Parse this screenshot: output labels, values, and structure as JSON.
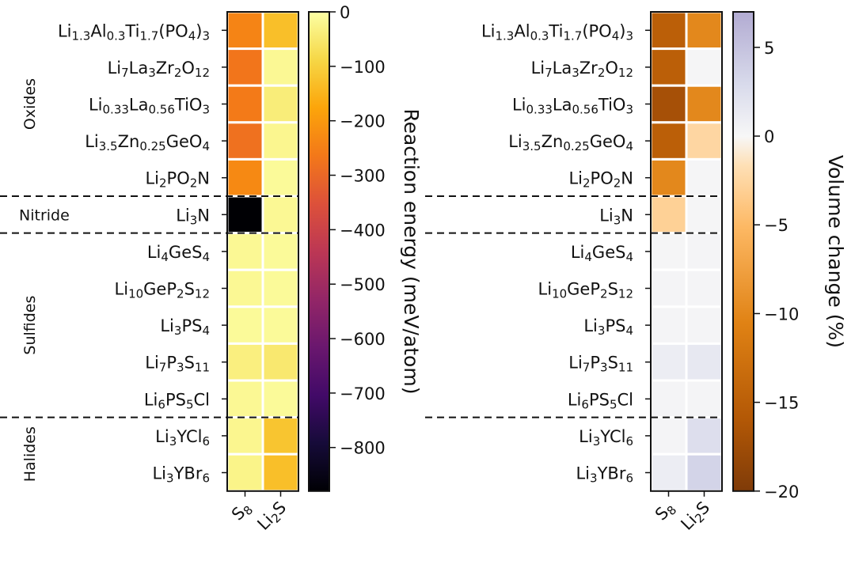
{
  "chart_data": [
    {
      "type": "heatmap",
      "columns": [
        {
          "base": "S",
          "sub": "8"
        },
        {
          "base": "Li",
          "sub": "2",
          "after": "S"
        }
      ],
      "rows": [
        {
          "group": "Oxides",
          "label": [
            [
              "Li",
              ""
            ],
            [
              "1.3",
              "sub"
            ],
            [
              "Al",
              ""
            ],
            [
              "0.3",
              "sub"
            ],
            [
              "Ti",
              ""
            ],
            [
              "1.7",
              "sub"
            ],
            [
              "(PO",
              ""
            ],
            [
              "4",
              "sub"
            ],
            [
              ")",
              ""
            ],
            [
              "3",
              "sub"
            ]
          ]
        },
        {
          "group": "Oxides",
          "label": [
            [
              "Li",
              ""
            ],
            [
              "7",
              "sub"
            ],
            [
              "La",
              ""
            ],
            [
              "3",
              "sub"
            ],
            [
              "Zr",
              ""
            ],
            [
              "2",
              "sub"
            ],
            [
              "O",
              ""
            ],
            [
              "12",
              "sub"
            ]
          ]
        },
        {
          "group": "Oxides",
          "label": [
            [
              "Li",
              ""
            ],
            [
              "0.33",
              "sub"
            ],
            [
              "La",
              ""
            ],
            [
              "0.56",
              "sub"
            ],
            [
              "TiO",
              ""
            ],
            [
              "3",
              "sub"
            ]
          ]
        },
        {
          "group": "Oxides",
          "label": [
            [
              "Li",
              ""
            ],
            [
              "3.5",
              "sub"
            ],
            [
              "Zn",
              ""
            ],
            [
              "0.25",
              "sub"
            ],
            [
              "GeO",
              ""
            ],
            [
              "4",
              "sub"
            ]
          ]
        },
        {
          "group": "Oxides",
          "label": [
            [
              "Li",
              ""
            ],
            [
              "2",
              "sub"
            ],
            [
              "PO",
              ""
            ],
            [
              "2",
              "sub"
            ],
            [
              "N",
              ""
            ]
          ]
        },
        {
          "group": "Nitride",
          "label": [
            [
              "Li",
              ""
            ],
            [
              "3",
              "sub"
            ],
            [
              "N",
              ""
            ]
          ]
        },
        {
          "group": "Sulfides",
          "label": [
            [
              "Li",
              ""
            ],
            [
              "4",
              "sub"
            ],
            [
              "GeS",
              ""
            ],
            [
              "4",
              "sub"
            ]
          ]
        },
        {
          "group": "Sulfides",
          "label": [
            [
              "Li",
              ""
            ],
            [
              "10",
              "sub"
            ],
            [
              "GeP",
              ""
            ],
            [
              "2",
              "sub"
            ],
            [
              "S",
              ""
            ],
            [
              "12",
              "sub"
            ]
          ]
        },
        {
          "group": "Sulfides",
          "label": [
            [
              "Li",
              ""
            ],
            [
              "3",
              "sub"
            ],
            [
              "PS",
              ""
            ],
            [
              "4",
              "sub"
            ]
          ]
        },
        {
          "group": "Sulfides",
          "label": [
            [
              "Li",
              ""
            ],
            [
              "7",
              "sub"
            ],
            [
              "P",
              ""
            ],
            [
              "3",
              "sub"
            ],
            [
              "S",
              ""
            ],
            [
              "11",
              "sub"
            ]
          ]
        },
        {
          "group": "Sulfides",
          "label": [
            [
              "Li",
              ""
            ],
            [
              "6",
              "sub"
            ],
            [
              "PS",
              ""
            ],
            [
              "5",
              "sub"
            ],
            [
              "Cl",
              ""
            ]
          ]
        },
        {
          "group": "Halides",
          "label": [
            [
              "Li",
              ""
            ],
            [
              "3",
              "sub"
            ],
            [
              "YCl",
              ""
            ],
            [
              "6",
              "sub"
            ]
          ]
        },
        {
          "group": "Halides",
          "label": [
            [
              "Li",
              ""
            ],
            [
              "3",
              "sub"
            ],
            [
              "YBr",
              ""
            ],
            [
              "6",
              "sub"
            ]
          ]
        }
      ],
      "groups": [
        "Oxides",
        "Nitride",
        "Sulfides",
        "Halides"
      ],
      "values": [
        [
          -240,
          -130
        ],
        [
          -270,
          -15
        ],
        [
          -260,
          -40
        ],
        [
          -280,
          -20
        ],
        [
          -230,
          -10
        ],
        [
          -880,
          -15
        ],
        [
          -15,
          -10
        ],
        [
          -15,
          -10
        ],
        [
          -10,
          -10
        ],
        [
          -35,
          -50
        ],
        [
          -15,
          -10
        ],
        [
          -20,
          -120
        ],
        [
          -25,
          -130
        ]
      ],
      "colorbar": {
        "label": "Reaction energy (meV/atom)",
        "range": [
          -880,
          0
        ],
        "ticks": [
          0,
          -100,
          -200,
          -300,
          -400,
          -500,
          -600,
          -700,
          -800
        ],
        "colormap": "inferno"
      }
    },
    {
      "type": "heatmap",
      "columns": [
        {
          "base": "S",
          "sub": "8"
        },
        {
          "base": "Li",
          "sub": "2",
          "after": "S"
        }
      ],
      "rows": "same as left panel",
      "values": [
        [
          -15,
          -10
        ],
        [
          -15,
          0.2
        ],
        [
          -17,
          -10
        ],
        [
          -15,
          -2.5
        ],
        [
          -10,
          0.2
        ],
        [
          -3,
          0.2
        ],
        [
          0.2,
          0.3
        ],
        [
          0.3,
          0.3
        ],
        [
          0.3,
          0.3
        ],
        [
          1,
          1.5
        ],
        [
          0.3,
          0.3
        ],
        [
          0.3,
          2.5
        ],
        [
          1,
          3.5
        ]
      ],
      "colorbar": {
        "label": "Volume change (%)",
        "range": [
          -20,
          7
        ],
        "ticks": [
          5,
          0,
          -5,
          -10,
          -15,
          -20
        ],
        "colormap": "PuOr"
      }
    }
  ]
}
